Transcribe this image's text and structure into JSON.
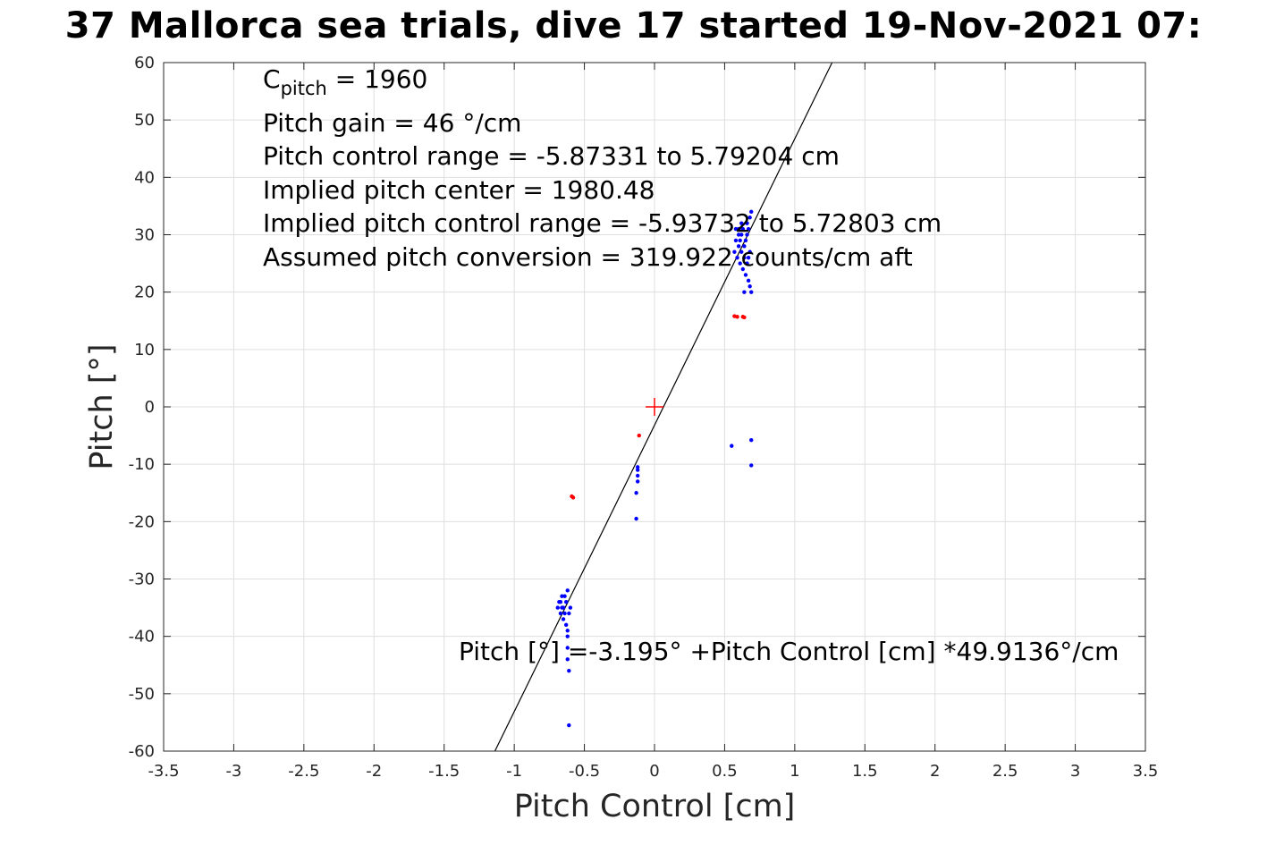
{
  "chart_data": {
    "type": "scatter",
    "title": "37 Mallorca sea trials, dive 17 started 19-Nov-2021 07:",
    "xlabel": "Pitch Control [cm]",
    "ylabel": "Pitch [°]",
    "xlim": [
      -3.5,
      3.5
    ],
    "ylim": [
      -60,
      60
    ],
    "xticks": [
      -3.5,
      -3,
      -2.5,
      -2,
      -1.5,
      -1,
      -0.5,
      0,
      0.5,
      1,
      1.5,
      2,
      2.5,
      3,
      3.5
    ],
    "xtick_labels": [
      "-3.5",
      "-3",
      "-2.5",
      "-2",
      "-1.5",
      "-1",
      "-0.5",
      "0",
      "0.5",
      "1",
      "1.5",
      "2",
      "2.5",
      "3",
      "3.5"
    ],
    "yticks": [
      -60,
      -50,
      -40,
      -30,
      -20,
      -10,
      0,
      10,
      20,
      30,
      40,
      50,
      60
    ],
    "ytick_labels": [
      "-60",
      "-50",
      "-40",
      "-30",
      "-20",
      "-10",
      "0",
      "10",
      "20",
      "30",
      "40",
      "50",
      "60"
    ],
    "grid": true,
    "fit_line": {
      "intercept": -3.195,
      "slope": 49.9136,
      "color": "#000000"
    },
    "center_marker": {
      "x": 0,
      "y": 0,
      "color": "#ff0000"
    },
    "series": [
      {
        "color": "#0000ff",
        "points": [
          [
            0.58,
            29
          ],
          [
            0.6,
            31
          ],
          [
            0.62,
            30
          ],
          [
            0.64,
            28
          ],
          [
            0.66,
            32
          ],
          [
            0.68,
            33
          ],
          [
            0.69,
            34
          ],
          [
            0.57,
            27
          ],
          [
            0.59,
            26
          ],
          [
            0.61,
            25
          ],
          [
            0.63,
            24
          ],
          [
            0.65,
            23
          ],
          [
            0.67,
            22
          ],
          [
            0.68,
            21
          ],
          [
            0.69,
            20
          ],
          [
            0.64,
            20
          ],
          [
            0.62,
            27
          ],
          [
            0.6,
            28
          ],
          [
            0.66,
            30
          ],
          [
            0.58,
            31
          ],
          [
            0.65,
            29
          ],
          [
            0.67,
            26
          ],
          [
            0.63,
            31
          ],
          [
            0.61,
            29
          ],
          [
            0.68,
            27
          ],
          [
            0.66,
            25
          ],
          [
            0.64,
            26
          ],
          [
            0.6,
            30
          ],
          [
            0.62,
            32
          ],
          [
            0.67,
            31
          ],
          [
            -0.68,
            -34
          ],
          [
            -0.66,
            -35
          ],
          [
            -0.64,
            -33
          ],
          [
            -0.62,
            -32
          ],
          [
            -0.67,
            -36
          ],
          [
            -0.65,
            -37
          ],
          [
            -0.63,
            -38
          ],
          [
            -0.62,
            -40
          ],
          [
            -0.62,
            -42
          ],
          [
            -0.62,
            -44
          ],
          [
            -0.61,
            -46
          ],
          [
            -0.69,
            -35
          ],
          [
            -0.66,
            -33
          ],
          [
            -0.64,
            -36
          ],
          [
            -0.63,
            -34
          ],
          [
            -0.61,
            -36
          ],
          [
            -0.62,
            -39
          ],
          [
            -0.6,
            -35
          ],
          [
            -0.67,
            -34
          ],
          [
            -0.65,
            -35
          ],
          [
            -0.12,
            -11
          ],
          [
            -0.12,
            -12
          ],
          [
            -0.12,
            -13
          ],
          [
            -0.13,
            -15
          ],
          [
            -0.12,
            -10.5
          ],
          [
            -0.13,
            -19.5
          ],
          [
            0.55,
            -6.8
          ],
          [
            0.69,
            -5.8
          ],
          [
            0.69,
            -10.2
          ],
          [
            -0.61,
            -55.5
          ]
        ]
      },
      {
        "color": "#ff0000",
        "points": [
          [
            -0.58,
            -15.8
          ],
          [
            -0.59,
            -15.6
          ],
          [
            0.57,
            15.8
          ],
          [
            0.59,
            15.7
          ],
          [
            0.63,
            15.7
          ],
          [
            0.64,
            15.6
          ],
          [
            -0.11,
            -5
          ]
        ]
      }
    ],
    "annotations": {
      "cpitch_main": "C",
      "cpitch_sub": "pitch",
      "cpitch_value": " = 1960",
      "pitch_gain": "Pitch gain = 46 °/cm",
      "control_range": "Pitch control range = -5.87331 to 5.79204 cm",
      "pitch_center": "Implied pitch center = 1980.48",
      "implied_range": "Implied pitch control range = -5.93732 to 5.72803 cm",
      "conversion": "Assumed pitch conversion = 319.922 counts/cm aft",
      "equation": "Pitch [°] =-3.195° +Pitch Control [cm] *49.9136°/cm"
    }
  }
}
